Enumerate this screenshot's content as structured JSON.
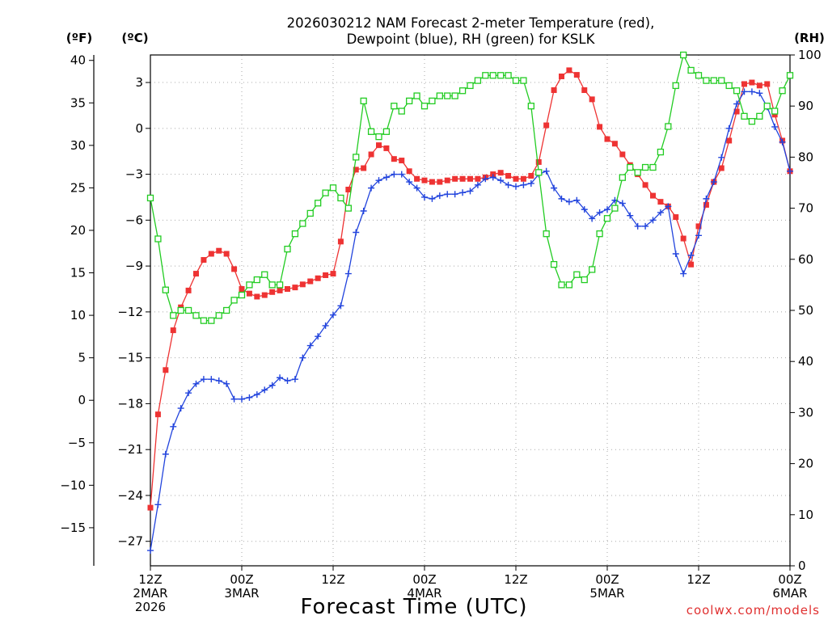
{
  "chart_data": {
    "type": "line",
    "title_lines": [
      "2026030212 NAM Forecast 2-meter Temperature (red),",
      "Dewpoint (blue), RH (green) for KSLK"
    ],
    "xlabel": "Forecast Time (UTC)",
    "credit": "coolwx.com/models",
    "x_unit": "forecast hour",
    "xlim": [
      0,
      84
    ],
    "x_ticks": [
      {
        "hour": 0,
        "line1": "12Z",
        "line2": "2MAR",
        "line3": "2026"
      },
      {
        "hour": 12,
        "line1": "00Z",
        "line2": "3MAR",
        "line3": ""
      },
      {
        "hour": 24,
        "line1": "12Z",
        "line2": "",
        "line3": ""
      },
      {
        "hour": 36,
        "line1": "00Z",
        "line2": "4MAR",
        "line3": ""
      },
      {
        "hour": 48,
        "line1": "12Z",
        "line2": "",
        "line3": ""
      },
      {
        "hour": 60,
        "line1": "00Z",
        "line2": "5MAR",
        "line3": ""
      },
      {
        "hour": 72,
        "line1": "12Z",
        "line2": "",
        "line3": ""
      },
      {
        "hour": 84,
        "line1": "00Z",
        "line2": "6MAR",
        "line3": ""
      }
    ],
    "celsius_axis": {
      "label": "(ºC)",
      "ylim": [
        -28.6,
        4.8
      ],
      "ticks": [
        3,
        0,
        -3,
        -6,
        -9,
        -12,
        -15,
        -18,
        -21,
        -24,
        -27
      ]
    },
    "fahrenheit_axis": {
      "label": "(ºF)",
      "ticks": [
        40,
        35,
        30,
        25,
        20,
        15,
        10,
        5,
        0,
        -5,
        -10,
        -15
      ]
    },
    "rh_axis": {
      "label": "(RH)",
      "ylim": [
        0,
        100
      ],
      "ticks": [
        100,
        90,
        80,
        70,
        60,
        50,
        40,
        30,
        20,
        10,
        0
      ]
    },
    "grid": true,
    "series": [
      {
        "name": "Temperature",
        "axis": "celsius",
        "color": "#ee3333",
        "marker": "filled-square",
        "x": [
          0,
          1,
          2,
          3,
          4,
          5,
          6,
          7,
          8,
          9,
          10,
          11,
          12,
          13,
          14,
          15,
          16,
          17,
          18,
          19,
          20,
          21,
          22,
          23,
          24,
          25,
          26,
          27,
          28,
          29,
          30,
          31,
          32,
          33,
          34,
          35,
          36,
          37,
          38,
          39,
          40,
          41,
          42,
          43,
          44,
          45,
          46,
          47,
          48,
          49,
          50,
          51,
          52,
          53,
          54,
          55,
          56,
          57,
          58,
          59,
          60,
          61,
          62,
          63,
          64,
          65,
          66,
          67,
          68,
          69,
          70,
          71,
          72,
          73,
          74,
          75,
          76,
          77,
          78,
          79,
          80,
          81,
          82,
          83,
          84
        ],
        "values": [
          -24.8,
          -18.7,
          -15.8,
          -13.2,
          -11.7,
          -10.6,
          -9.5,
          -8.6,
          -8.2,
          -8.0,
          -8.2,
          -9.2,
          -10.5,
          -10.8,
          -11.0,
          -10.9,
          -10.7,
          -10.6,
          -10.5,
          -10.4,
          -10.2,
          -10.0,
          -9.8,
          -9.6,
          -9.5,
          -7.4,
          -4.0,
          -2.7,
          -2.6,
          -1.7,
          -1.1,
          -1.3,
          -2.0,
          -2.1,
          -2.8,
          -3.3,
          -3.4,
          -3.5,
          -3.5,
          -3.4,
          -3.3,
          -3.3,
          -3.3,
          -3.3,
          -3.2,
          -3.0,
          -2.9,
          -3.1,
          -3.3,
          -3.3,
          -3.1,
          -2.2,
          0.2,
          2.5,
          3.4,
          3.8,
          3.5,
          2.5,
          1.9,
          0.1,
          -0.7,
          -1.0,
          -1.7,
          -2.4,
          -3.0,
          -3.7,
          -4.4,
          -4.8,
          -5.1,
          -5.8,
          -7.2,
          -8.9,
          -6.4,
          -5.0,
          -3.5,
          -2.6,
          -0.8,
          1.1,
          2.9,
          3.0,
          2.8,
          2.9,
          0.9,
          -0.8,
          -2.8
        ]
      },
      {
        "name": "Dewpoint",
        "axis": "celsius",
        "color": "#2244dd",
        "marker": "plus",
        "x": [
          0,
          1,
          2,
          3,
          4,
          5,
          6,
          7,
          8,
          9,
          10,
          11,
          12,
          13,
          14,
          15,
          16,
          17,
          18,
          19,
          20,
          21,
          22,
          23,
          24,
          25,
          26,
          27,
          28,
          29,
          30,
          31,
          32,
          33,
          34,
          35,
          36,
          37,
          38,
          39,
          40,
          41,
          42,
          43,
          44,
          45,
          46,
          47,
          48,
          49,
          50,
          51,
          52,
          53,
          54,
          55,
          56,
          57,
          58,
          59,
          60,
          61,
          62,
          63,
          64,
          65,
          66,
          67,
          68,
          69,
          70,
          71,
          72,
          73,
          74,
          75,
          76,
          77,
          78,
          79,
          80,
          81,
          82,
          83,
          84
        ],
        "values": [
          -27.6,
          -24.6,
          -21.3,
          -19.5,
          -18.3,
          -17.3,
          -16.7,
          -16.4,
          -16.4,
          -16.5,
          -16.7,
          -17.7,
          -17.7,
          -17.6,
          -17.4,
          -17.1,
          -16.8,
          -16.3,
          -16.5,
          -16.4,
          -15.0,
          -14.2,
          -13.6,
          -12.9,
          -12.2,
          -11.6,
          -9.5,
          -6.8,
          -5.4,
          -3.9,
          -3.4,
          -3.2,
          -3.0,
          -3.0,
          -3.5,
          -3.9,
          -4.5,
          -4.6,
          -4.4,
          -4.3,
          -4.3,
          -4.2,
          -4.1,
          -3.7,
          -3.3,
          -3.2,
          -3.4,
          -3.7,
          -3.8,
          -3.7,
          -3.6,
          -3.0,
          -2.8,
          -3.9,
          -4.6,
          -4.8,
          -4.7,
          -5.3,
          -5.9,
          -5.5,
          -5.3,
          -4.7,
          -4.9,
          -5.7,
          -6.4,
          -6.4,
          -6.0,
          -5.5,
          -5.1,
          -8.2,
          -9.5,
          -8.3,
          -7.0,
          -4.6,
          -3.5,
          -1.9,
          0.0,
          1.6,
          2.4,
          2.4,
          2.3,
          1.4,
          0.1,
          -0.9,
          -2.8
        ]
      },
      {
        "name": "RH",
        "axis": "rh",
        "color": "#22cc22",
        "marker": "open-square",
        "x": [
          0,
          1,
          2,
          3,
          4,
          5,
          6,
          7,
          8,
          9,
          10,
          11,
          12,
          13,
          14,
          15,
          16,
          17,
          18,
          19,
          20,
          21,
          22,
          23,
          24,
          25,
          26,
          27,
          28,
          29,
          30,
          31,
          32,
          33,
          34,
          35,
          36,
          37,
          38,
          39,
          40,
          41,
          42,
          43,
          44,
          45,
          46,
          47,
          48,
          49,
          50,
          51,
          52,
          53,
          54,
          55,
          56,
          57,
          58,
          59,
          60,
          61,
          62,
          63,
          64,
          65,
          66,
          67,
          68,
          69,
          70,
          71,
          72,
          73,
          74,
          75,
          76,
          77,
          78,
          79,
          80,
          81,
          82,
          83,
          84
        ],
        "values": [
          72,
          64,
          54,
          49,
          50,
          50,
          49,
          48,
          48,
          49,
          50,
          52,
          53,
          55,
          56,
          57,
          55,
          55,
          62,
          65,
          67,
          69,
          71,
          73,
          74,
          72,
          70,
          80,
          91,
          85,
          84,
          85,
          90,
          89,
          91,
          92,
          90,
          91,
          92,
          92,
          92,
          93,
          94,
          95,
          96,
          96,
          96,
          96,
          95,
          95,
          90,
          77,
          65,
          59,
          55,
          55,
          57,
          56,
          58,
          65,
          68,
          70,
          76,
          78,
          77,
          78,
          78,
          81,
          86,
          94,
          100,
          97,
          96,
          95,
          95,
          95,
          94,
          93,
          88,
          87,
          88,
          90,
          89,
          93,
          96
        ]
      }
    ]
  }
}
